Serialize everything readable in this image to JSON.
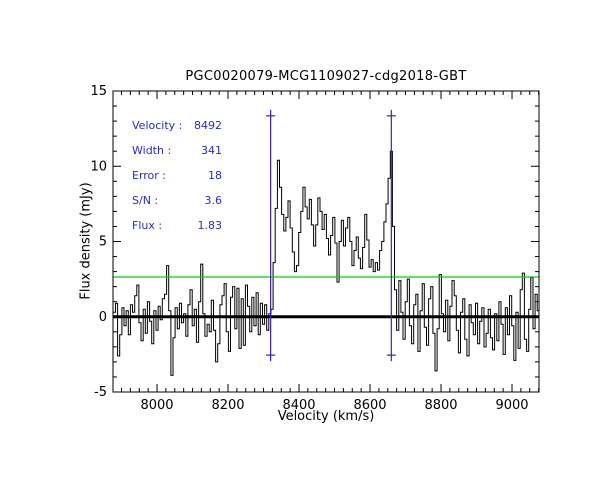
{
  "chart_data": {
    "type": "line",
    "title": "PGC0020079-MCG1109027-cdg2018-GBT",
    "xlabel": "Velocity (km/s)",
    "ylabel": "Flux density (mJy)",
    "xlim": [
      7876,
      9076
    ],
    "ylim": [
      -5,
      15
    ],
    "grid": false,
    "legend": "none",
    "xticks": {
      "major": 200,
      "minor": 25,
      "labels": [
        8000,
        8200,
        8400,
        8600,
        8800,
        9000
      ]
    },
    "yticks": {
      "major": 5,
      "minor": 1,
      "labels": [
        -5,
        0,
        5,
        10,
        15
      ]
    },
    "baseline_y": 0,
    "threshold_line": {
      "y": 2.64,
      "color": "#00d400"
    },
    "flag_markers": {
      "velocities": [
        8320,
        8660
      ],
      "top": 13.35,
      "bottom": -2.55,
      "color": "#3c1ec8"
    },
    "series": [
      {
        "name": "spectrum",
        "color": "#000000",
        "mode": "steps",
        "v_start": 7880,
        "v_step": 6,
        "flux": [
          0.3,
          0.9,
          -2.6,
          -1.2,
          0.6,
          -0.6,
          0.4,
          -1.2,
          0.8,
          0.3,
          1.4,
          2.1,
          -0.4,
          -1.6,
          0.5,
          -1.1,
          1.0,
          -0.3,
          -1.8,
          0.4,
          -0.9,
          0.7,
          -0.2,
          1.2,
          1.5,
          3.4,
          0.4,
          -3.9,
          -1.4,
          0.6,
          -0.8,
          0.9,
          -0.4,
          0.2,
          -1.3,
          0.8,
          1.8,
          -0.6,
          0.5,
          -1.7,
          1.0,
          3.5,
          0.2,
          -1.3,
          -0.5,
          -1.0,
          1.1,
          -0.9,
          -3.0,
          -1.8,
          0.8,
          1.4,
          2.2,
          -1.0,
          -2.3,
          1.3,
          2.0,
          -0.8,
          1.9,
          -2.1,
          1.2,
          -1.9,
          2.1,
          0.7,
          -1.0,
          1.3,
          -0.6,
          1.6,
          -1.2,
          0.9,
          -0.5,
          0.8,
          -0.9,
          0.2,
          0.5,
          3.6,
          7.2,
          10.4,
          8.6,
          6.8,
          5.7,
          6.6,
          7.7,
          5.9,
          4.3,
          3.0,
          3.4,
          5.6,
          7.0,
          8.6,
          7.3,
          6.5,
          7.8,
          6.1,
          4.7,
          6.1,
          7.9,
          7.0,
          5.8,
          6.8,
          5.2,
          4.1,
          5.4,
          6.6,
          4.9,
          2.3,
          5.0,
          6.4,
          4.7,
          5.9,
          6.6,
          5.0,
          3.4,
          4.4,
          5.3,
          3.9,
          3.2,
          4.6,
          6.8,
          5.1,
          3.3,
          3.8,
          3.0,
          3.6,
          3.1,
          4.4,
          5.0,
          6.3,
          7.5,
          9.2,
          11.0,
          6.0,
          1.8,
          -0.9,
          2.4,
          0.3,
          -1.5,
          1.0,
          2.5,
          -0.6,
          -1.8,
          0.8,
          1.5,
          -2.3,
          0.4,
          2.2,
          -0.7,
          -1.9,
          1.2,
          2.0,
          -1.1,
          -3.6,
          -0.8,
          2.8,
          0.2,
          -1.0,
          1.1,
          -1.6,
          0.7,
          2.4,
          1.4,
          -0.9,
          -2.4,
          0.3,
          1.2,
          -1.5,
          -2.6,
          0.8,
          -0.4,
          -1.2,
          0.9,
          -1.8,
          -0.3,
          0.6,
          -2.0,
          -1.1,
          0.5,
          -1.4,
          -2.2,
          0.2,
          -1.6,
          1.0,
          -0.5,
          -2.5,
          0.6,
          -1.2,
          1.4,
          -0.6,
          -2.9,
          0.3,
          -2.1,
          1.8,
          2.9,
          -1.5,
          -2.3,
          0.5,
          2.6,
          -0.8,
          1.5,
          0.4
        ]
      }
    ]
  },
  "annotations": {
    "color": "#2929c8",
    "rows": [
      {
        "label": "Velocity :",
        "value": "8492"
      },
      {
        "label": "Width :",
        "value": "341"
      },
      {
        "label": "Error :",
        "value": "18"
      },
      {
        "label": "S/N :",
        "value": "3.6"
      },
      {
        "label": "Flux :",
        "value": "1.83"
      }
    ]
  }
}
